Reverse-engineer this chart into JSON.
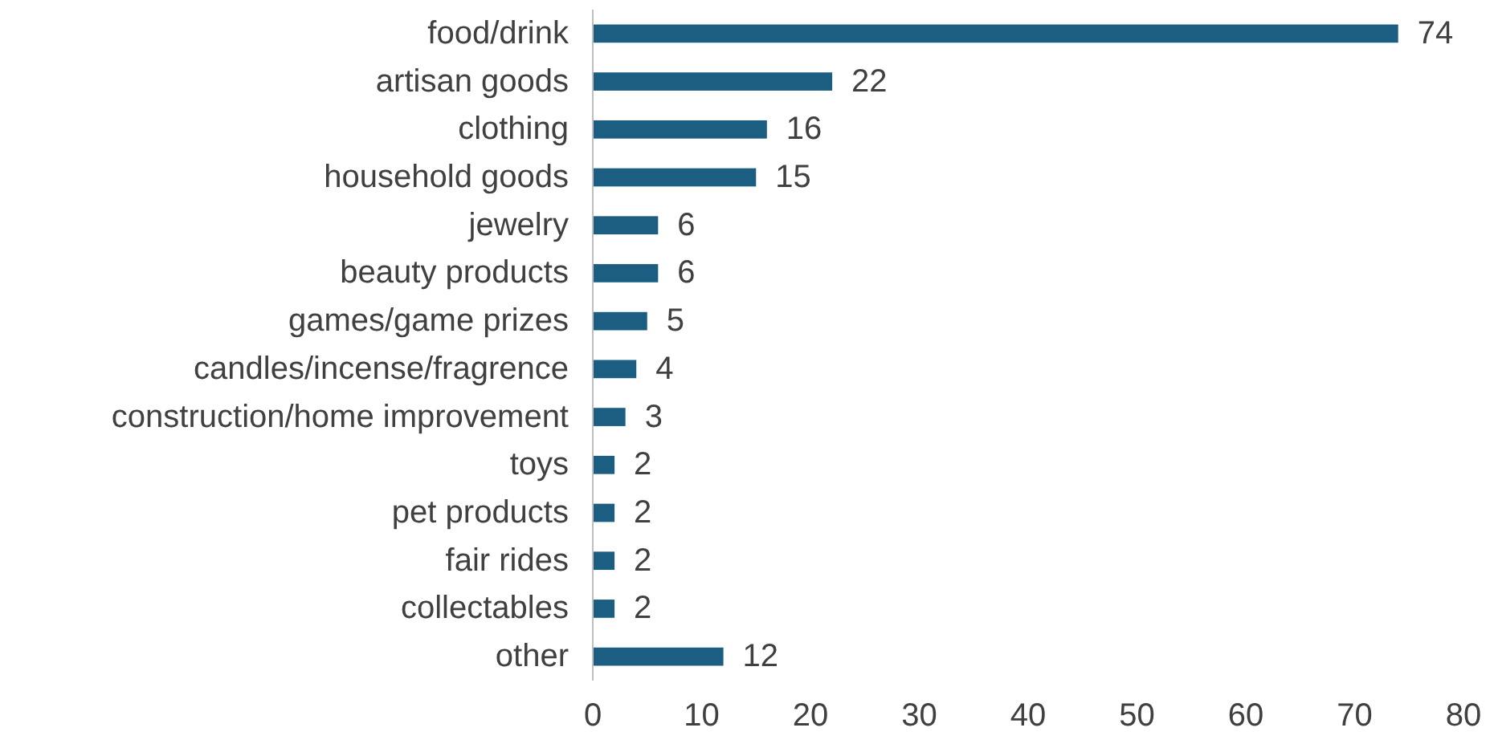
{
  "chart_data": {
    "type": "bar",
    "orientation": "horizontal",
    "categories": [
      "food/drink",
      "artisan goods",
      "clothing",
      "household goods",
      "jewelry",
      "beauty products",
      "games/game prizes",
      "candles/incense/fragrence",
      "construction/home improvement",
      "toys",
      "pet products",
      "fair rides",
      "collectables",
      "other"
    ],
    "values": [
      74,
      22,
      16,
      15,
      6,
      6,
      5,
      4,
      3,
      2,
      2,
      2,
      2,
      12
    ],
    "color": "#1b5e82",
    "data_labels": true,
    "xlim": [
      0,
      80
    ],
    "xticks": [
      0,
      10,
      20,
      30,
      40,
      50,
      60,
      70,
      80
    ],
    "grid": false
  }
}
